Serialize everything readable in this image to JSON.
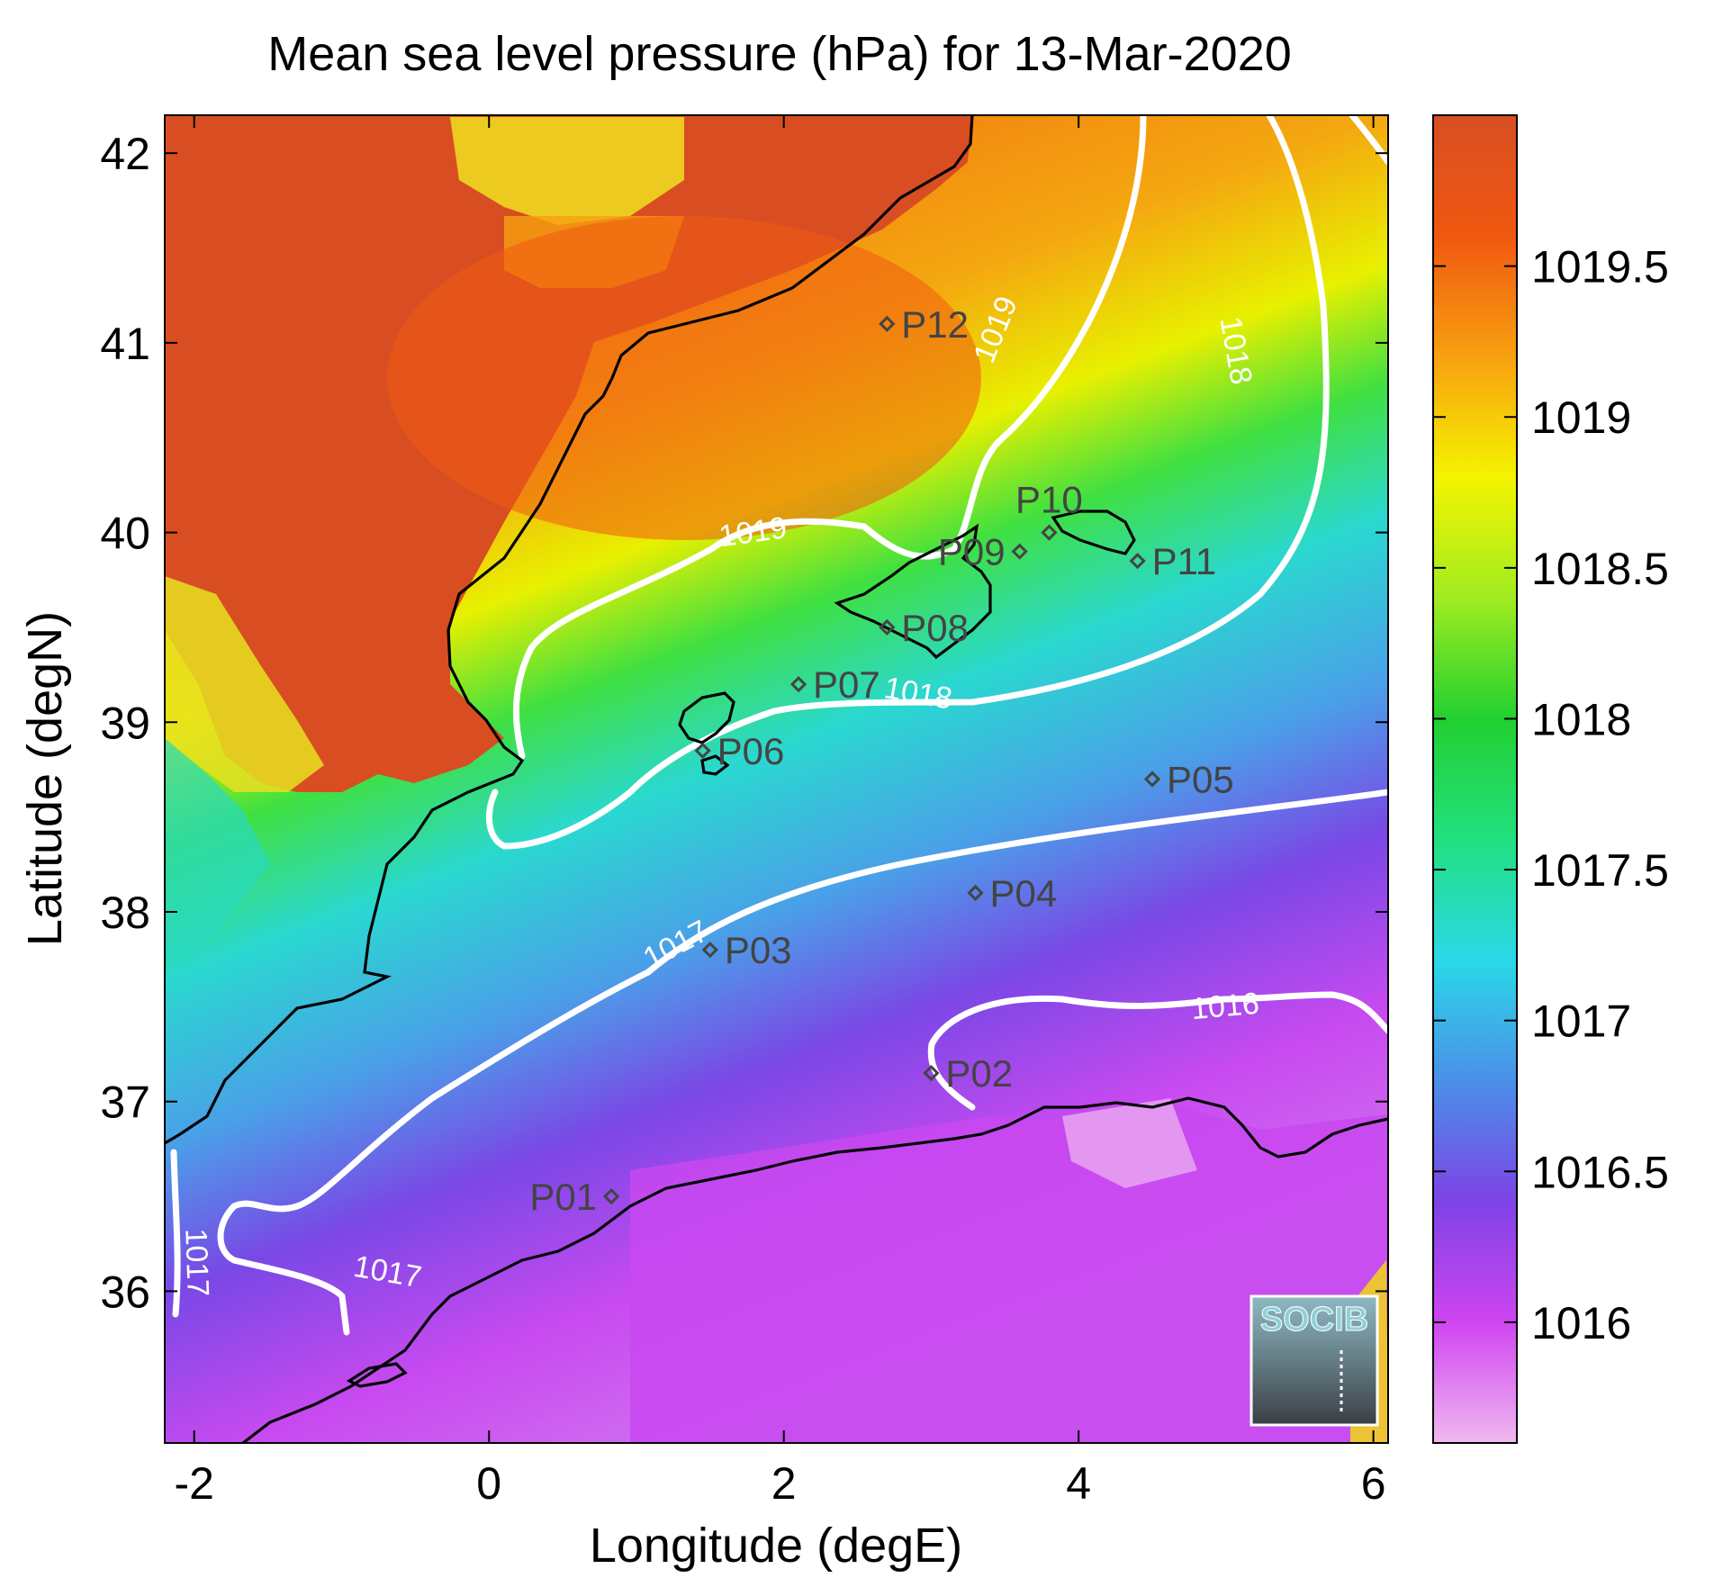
{
  "title": "Mean sea level pressure (hPa) for 13-Mar-2020",
  "x_axis": {
    "label": "Longitude (degE)",
    "range": [
      -2.2,
      6.1
    ],
    "ticks": [
      {
        "value": -2,
        "label": "-2"
      },
      {
        "value": 0,
        "label": "0"
      },
      {
        "value": 2,
        "label": "2"
      },
      {
        "value": 4,
        "label": "4"
      },
      {
        "value": 6,
        "label": "6"
      }
    ]
  },
  "y_axis": {
    "label": "Latitude (degN)",
    "range": [
      35.2,
      42.2
    ],
    "ticks": [
      {
        "value": 36,
        "label": "36"
      },
      {
        "value": 37,
        "label": "37"
      },
      {
        "value": 38,
        "label": "38"
      },
      {
        "value": 39,
        "label": "39"
      },
      {
        "value": 40,
        "label": "40"
      },
      {
        "value": 41,
        "label": "41"
      },
      {
        "value": 42,
        "label": "42"
      }
    ]
  },
  "colorbar": {
    "range": [
      1015.6,
      1020.0
    ],
    "ticks": [
      {
        "value": 1016,
        "label": "1016"
      },
      {
        "value": 1016.5,
        "label": "1016.5"
      },
      {
        "value": 1017,
        "label": "1017"
      },
      {
        "value": 1017.5,
        "label": "1017.5"
      },
      {
        "value": 1018,
        "label": "1018"
      },
      {
        "value": 1018.5,
        "label": "1018.5"
      },
      {
        "value": 1019,
        "label": "1019"
      },
      {
        "value": 1019.5,
        "label": "1019.5"
      }
    ],
    "stops": [
      "#f0b8f0",
      "#cf45f0",
      "#7d43e6",
      "#4a90e8",
      "#2ad8e8",
      "#22e080",
      "#22d030",
      "#a0ec20",
      "#f4f400",
      "#f8a010",
      "#f05810",
      "#d84e22"
    ]
  },
  "contour_labels": [
    {
      "text": "1019",
      "lon": 3.5,
      "lat": 41.05,
      "angle": -68
    },
    {
      "text": "1019",
      "lon": 1.8,
      "lat": 39.95,
      "angle": -8
    },
    {
      "text": "1018",
      "lon": 5.0,
      "lat": 40.95,
      "angle": 80
    },
    {
      "text": "1018",
      "lon": 2.9,
      "lat": 39.1,
      "angle": 10
    },
    {
      "text": "1017",
      "lon": 1.3,
      "lat": 37.78,
      "angle": -28
    },
    {
      "text": "1016",
      "lon": 5.0,
      "lat": 37.45,
      "angle": -5
    },
    {
      "text": "1017",
      "lon": -0.7,
      "lat": 36.05,
      "angle": 10
    },
    {
      "text": "1017",
      "lon": -2.05,
      "lat": 36.15,
      "angle": 88
    }
  ],
  "stations": [
    {
      "id": "P01",
      "lon": 0.83,
      "lat": 36.5,
      "label_side": "left"
    },
    {
      "id": "P02",
      "lon": 3.0,
      "lat": 37.15,
      "label_side": "right"
    },
    {
      "id": "P03",
      "lon": 1.5,
      "lat": 37.8,
      "label_side": "right"
    },
    {
      "id": "P04",
      "lon": 3.3,
      "lat": 38.1,
      "label_side": "right"
    },
    {
      "id": "P05",
      "lon": 4.5,
      "lat": 38.7,
      "label_side": "right"
    },
    {
      "id": "P06",
      "lon": 1.45,
      "lat": 38.85,
      "label_side": "right"
    },
    {
      "id": "P07",
      "lon": 2.1,
      "lat": 39.2,
      "label_side": "right"
    },
    {
      "id": "P08",
      "lon": 2.7,
      "lat": 39.5,
      "label_side": "right"
    },
    {
      "id": "P09",
      "lon": 3.6,
      "lat": 39.9,
      "label_side": "left"
    },
    {
      "id": "P10",
      "lon": 3.8,
      "lat": 40.0,
      "label_side": "above"
    },
    {
      "id": "P11",
      "lon": 4.4,
      "lat": 39.85,
      "label_side": "right"
    },
    {
      "id": "P12",
      "lon": 2.7,
      "lat": 41.1,
      "label_side": "right"
    }
  ],
  "logo": {
    "text": "SOCIB"
  }
}
